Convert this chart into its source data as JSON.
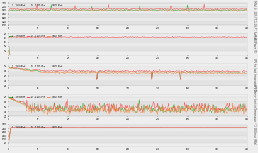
{
  "panels": [
    {
      "ylabel_right": "GPU Clock (MHz) @ 100% PT; 110% PT; FurMark",
      "ylim": [
        1000,
        2200
      ],
      "yticks": [
        1000,
        1200,
        1400,
        1600,
        1800,
        2000,
        2200
      ],
      "panel_type": "clock"
    },
    {
      "ylabel_right": "GPU Power (W)",
      "ylim": [
        0,
        500
      ],
      "yticks": [
        100,
        200,
        300,
        400,
        500
      ],
      "panel_type": "power"
    },
    {
      "ylabel_right": "GPU Hot Spot Temperature (°C)",
      "ylim": [
        20,
        110
      ],
      "yticks": [
        20,
        40,
        60,
        80,
        100
      ],
      "panel_type": "hotspot"
    },
    {
      "ylabel_right": "GPU Memory Junction Temperature (°C)",
      "ylim": [
        20,
        110
      ],
      "yticks": [
        20,
        40,
        60,
        80,
        100
      ],
      "panel_type": "memory"
    },
    {
      "ylabel_right": "GPU Input (MHz)",
      "ylim": [
        0,
        3000
      ],
      "yticks": [
        500,
        1000,
        1500,
        2000,
        2500,
        3000
      ],
      "panel_type": "input"
    }
  ],
  "legend_labels": [
    "0 - 100% Perf",
    "110 - 110% Perf",
    "1 - BIOS Perf"
  ],
  "legend_colors": [
    "#33aa33",
    "#ff4444",
    "#ff8844"
  ],
  "background_color": "#eeeeee",
  "grid_color": "#cccccc",
  "n_points": 400
}
